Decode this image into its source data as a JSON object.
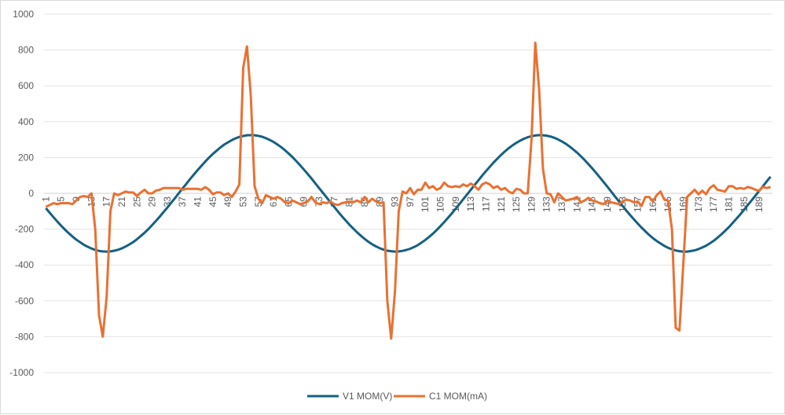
{
  "chart_data": {
    "type": "line",
    "title": "",
    "xlabel": "",
    "ylabel": "",
    "ylim": [
      -1000,
      1000
    ],
    "yticks": [
      -1000,
      -800,
      -600,
      -400,
      -200,
      0,
      200,
      400,
      600,
      800,
      1000
    ],
    "x_categories_start": 1,
    "x_categories_end": 192,
    "x_tick_label_step": 4,
    "grid": true,
    "legend": "bottom",
    "series": [
      {
        "name": "V1 MOM(V)",
        "color": "#156082",
        "values": [
          -83,
          -108,
          -133,
          -157,
          -180,
          -202,
          -222,
          -241,
          -258,
          -273,
          -287,
          -298,
          -308,
          -316,
          -321,
          -324,
          -325,
          -324,
          -320,
          -315,
          -307,
          -297,
          -285,
          -272,
          -256,
          -238,
          -220,
          -199,
          -177,
          -154,
          -130,
          -105,
          -80,
          -53,
          -27,
          0,
          27,
          53,
          80,
          105,
          130,
          154,
          177,
          199,
          220,
          238,
          256,
          272,
          285,
          297,
          307,
          315,
          320,
          324,
          325,
          324,
          321,
          316,
          308,
          298,
          287,
          273,
          258,
          241,
          222,
          202,
          180,
          157,
          133,
          108,
          83,
          56,
          30,
          3,
          -23,
          -50,
          -76,
          -102,
          -127,
          -151,
          -175,
          -196,
          -217,
          -236,
          -254,
          -270,
          -284,
          -296,
          -306,
          -314,
          -320,
          -323,
          -325,
          -324,
          -321,
          -316,
          -309,
          -300,
          -289,
          -275,
          -260,
          -243,
          -225,
          -205,
          -183,
          -160,
          -136,
          -112,
          -86,
          -60,
          -33,
          -7,
          20,
          47,
          73,
          99,
          124,
          148,
          172,
          194,
          215,
          234,
          252,
          268,
          282,
          294,
          305,
          313,
          319,
          323,
          325,
          324,
          322,
          317,
          310,
          301,
          290,
          277,
          262,
          245,
          227,
          207,
          186,
          163,
          139,
          115,
          89,
          63,
          37,
          10,
          -17,
          -44,
          -70,
          -96,
          -121,
          -145,
          -169,
          -191,
          -212,
          -232,
          -250,
          -266,
          -280,
          -293,
          -304,
          -312,
          -319,
          -323,
          -325,
          -325,
          -322,
          -318,
          -311,
          -302,
          -292,
          -279,
          -265,
          -248,
          -230,
          -210,
          -189,
          -166,
          -142,
          -118,
          -92,
          -66,
          -40,
          -13,
          14,
          40,
          67,
          93
        ]
      },
      {
        "name": "C1 MOM(mA)",
        "color": "#E97132",
        "values": [
          -75,
          -65,
          -55,
          -60,
          -55,
          -55,
          -55,
          -60,
          -40,
          -20,
          -15,
          -20,
          0,
          -200,
          -680,
          -800,
          -580,
          -100,
          0,
          -10,
          0,
          10,
          5,
          5,
          -15,
          5,
          20,
          0,
          0,
          15,
          20,
          30,
          30,
          30,
          30,
          30,
          20,
          25,
          25,
          25,
          25,
          20,
          35,
          20,
          -5,
          5,
          5,
          -10,
          0,
          -20,
          10,
          50,
          700,
          820,
          550,
          40,
          -30,
          -55,
          -10,
          -20,
          -30,
          -20,
          -30,
          -50,
          -55,
          -40,
          -50,
          -60,
          -55,
          -45,
          -20,
          -50,
          -60,
          -50,
          -55,
          -45,
          -60,
          -65,
          -55,
          -50,
          -45,
          -50,
          -40,
          -50,
          -20,
          -50,
          -30,
          -45,
          -55,
          -50,
          -600,
          -810,
          -550,
          -100,
          10,
          0,
          30,
          -5,
          20,
          20,
          60,
          30,
          40,
          20,
          30,
          60,
          40,
          35,
          40,
          35,
          50,
          40,
          55,
          40,
          20,
          50,
          60,
          50,
          30,
          40,
          20,
          30,
          10,
          0,
          25,
          20,
          0,
          0,
          300,
          840,
          580,
          140,
          0,
          -5,
          -50,
          0,
          -20,
          -40,
          -35,
          -30,
          -20,
          -50,
          -40,
          -25,
          -40,
          -45,
          -55,
          -60,
          -40,
          -50,
          -55,
          -60,
          -45,
          -35,
          -40,
          -50,
          -45,
          -70,
          -20,
          -20,
          -45,
          -10,
          10,
          -35,
          -40,
          -200,
          -750,
          -765,
          -400,
          -20,
          0,
          20,
          -5,
          15,
          -5,
          30,
          45,
          20,
          15,
          10,
          40,
          40,
          25,
          30,
          25,
          35,
          30,
          20,
          15,
          35,
          30,
          35
        ]
      }
    ]
  }
}
